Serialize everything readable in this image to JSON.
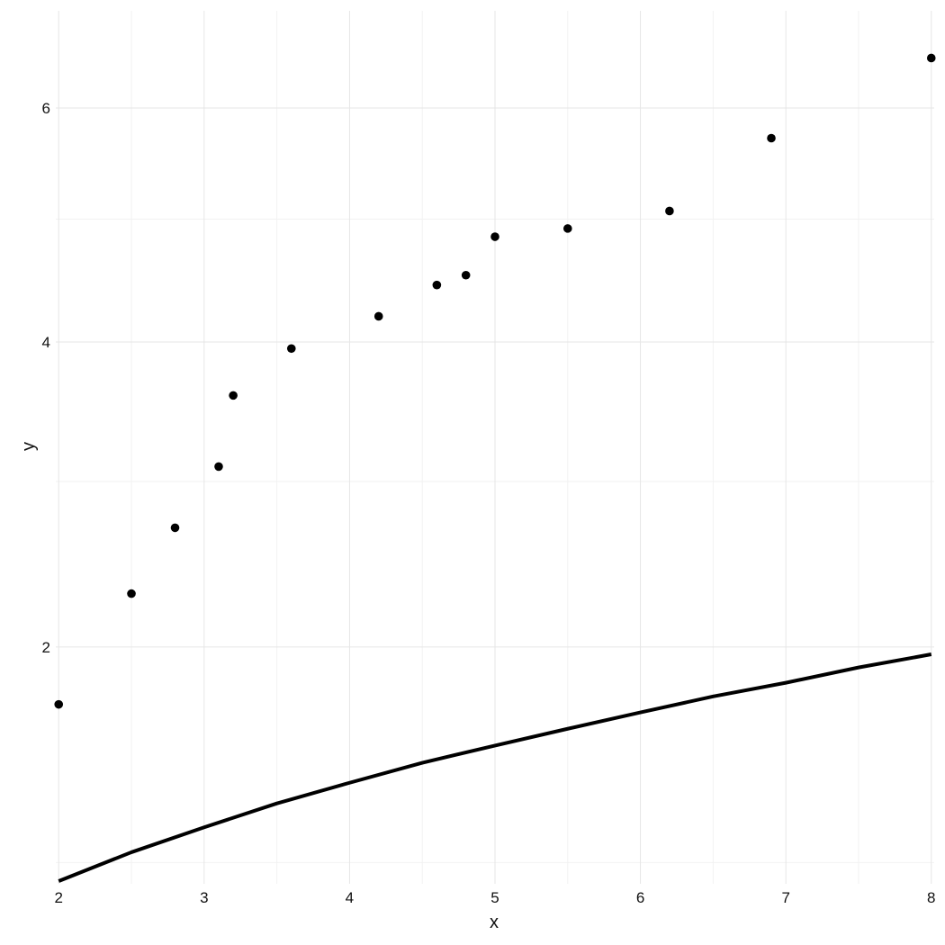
{
  "chart_data": {
    "type": "scatter",
    "title": "",
    "xlabel": "x",
    "ylabel": "y",
    "xlim": [
      1.98,
      8.02
    ],
    "ylim": [
      0.92,
      6.95
    ],
    "y_scale": "sqrt",
    "grid": true,
    "x_ticks": [
      2,
      3,
      4,
      5,
      6,
      7,
      8
    ],
    "y_ticks": [
      2,
      4,
      6
    ],
    "x_tick_labels": [
      "2",
      "3",
      "4",
      "5",
      "6",
      "7",
      "8"
    ],
    "y_tick_labels": [
      "2",
      "4",
      "6"
    ],
    "x_minor_ticks": [
      2.5,
      3.5,
      4.5,
      5.5,
      6.5,
      7.5
    ],
    "y_minor_ticks": [
      1,
      3,
      5
    ],
    "series": [
      {
        "kind": "points",
        "color": "#000000",
        "points": [
          {
            "x": 2.0,
            "y": 1.7
          },
          {
            "x": 2.5,
            "y": 2.3
          },
          {
            "x": 2.8,
            "y": 2.7
          },
          {
            "x": 3.1,
            "y": 3.1
          },
          {
            "x": 3.2,
            "y": 3.6
          },
          {
            "x": 3.6,
            "y": 3.95
          },
          {
            "x": 4.2,
            "y": 4.2
          },
          {
            "x": 4.6,
            "y": 4.45
          },
          {
            "x": 4.8,
            "y": 4.53
          },
          {
            "x": 5.0,
            "y": 4.85
          },
          {
            "x": 5.5,
            "y": 4.92
          },
          {
            "x": 6.2,
            "y": 5.07
          },
          {
            "x": 6.9,
            "y": 5.72
          },
          {
            "x": 8.0,
            "y": 6.48
          }
        ]
      },
      {
        "kind": "line",
        "color": "#000000",
        "points": [
          {
            "x": 2.0,
            "y": 0.93
          },
          {
            "x": 2.5,
            "y": 1.04
          },
          {
            "x": 3.0,
            "y": 1.14
          },
          {
            "x": 3.5,
            "y": 1.24
          },
          {
            "x": 4.0,
            "y": 1.33
          },
          {
            "x": 4.5,
            "y": 1.42
          },
          {
            "x": 5.0,
            "y": 1.5
          },
          {
            "x": 5.5,
            "y": 1.58
          },
          {
            "x": 6.0,
            "y": 1.66
          },
          {
            "x": 6.5,
            "y": 1.74
          },
          {
            "x": 7.0,
            "y": 1.81
          },
          {
            "x": 7.5,
            "y": 1.89
          },
          {
            "x": 8.0,
            "y": 1.96
          }
        ]
      }
    ]
  }
}
